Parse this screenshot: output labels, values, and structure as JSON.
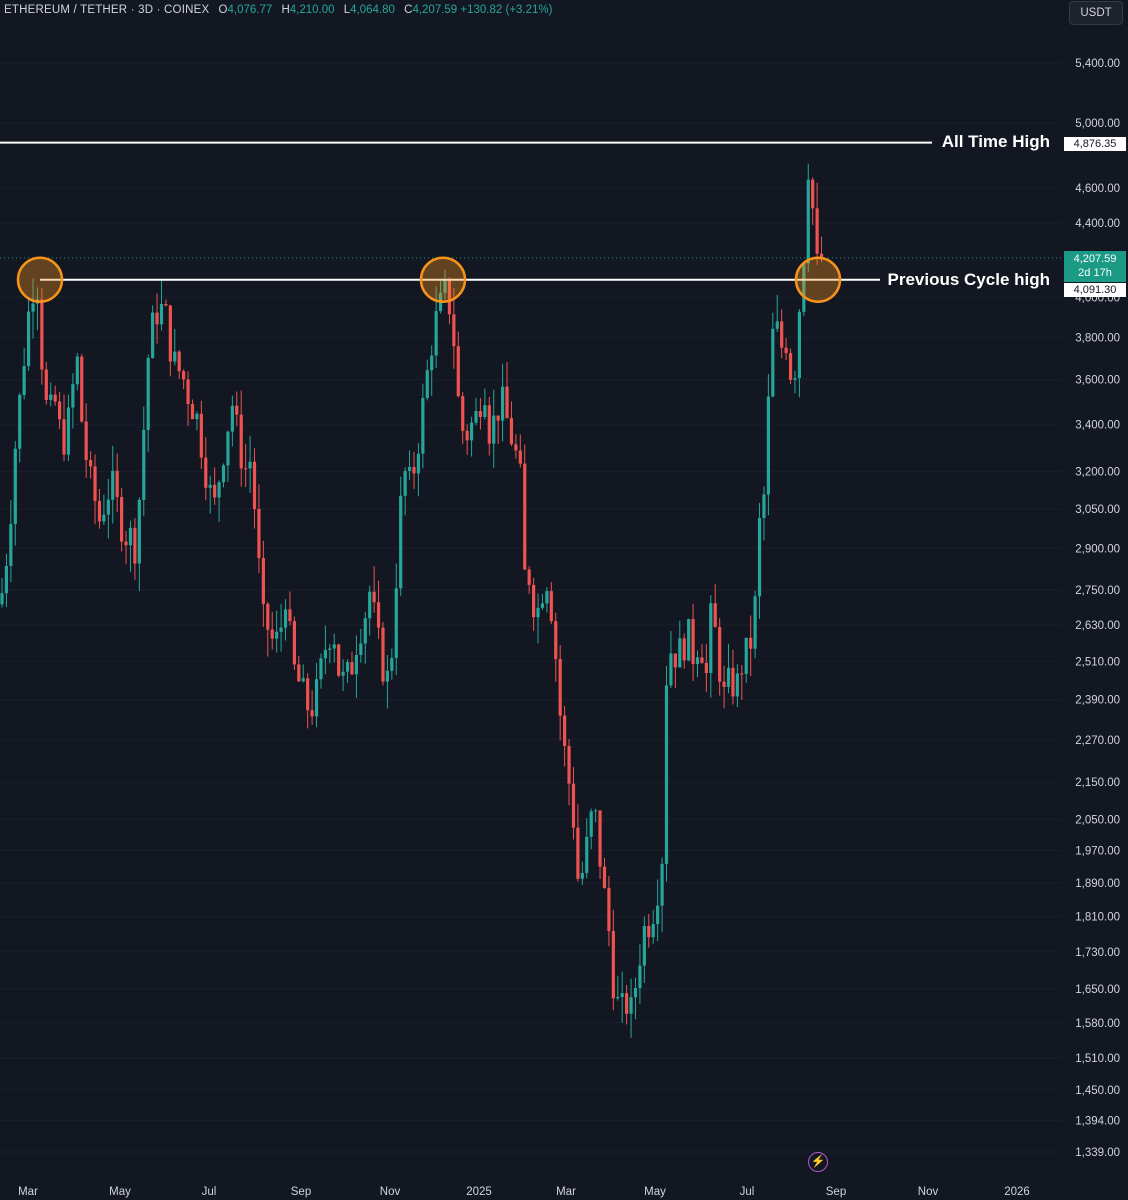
{
  "header": {
    "symbol": "ETHEREUM / TETHER · 3D · COINEX",
    "open_label": "O",
    "open": "4,076.77",
    "high_label": "H",
    "high": "4,210.00",
    "low_label": "L",
    "low": "4,064.80",
    "close_label": "C",
    "close": "4,207.59",
    "change": "+130.82 (+3.21%)"
  },
  "currency": "USDT",
  "annotations": {
    "ath_label": "All Time High",
    "ath_value": "4,876.35",
    "prev_cycle_label": "Previous Cycle high",
    "prev_cycle_value": "4,091.30",
    "last_price": "4,207.59",
    "countdown": "2d 17h"
  },
  "colors": {
    "up": "#26a69a",
    "down": "#ef5350",
    "background": "#131722",
    "circle": "#f7931a"
  },
  "icons": {
    "flash": "flash-icon"
  },
  "chart_data": {
    "type": "candlestick",
    "scale": "log",
    "ylim": [
      1339,
      5400
    ],
    "y_ticks": [
      "5,400.00",
      "5,000.00",
      "4,600.00",
      "4,400.00",
      "4,000.00",
      "3,800.00",
      "3,600.00",
      "3,400.00",
      "3,200.00",
      "3,050.00",
      "2,900.00",
      "2,750.00",
      "2,630.00",
      "2,510.00",
      "2,390.00",
      "2,270.00",
      "2,150.00",
      "2,050.00",
      "1,970.00",
      "1,890.00",
      "1,810.00",
      "1,730.00",
      "1,650.00",
      "1,580.00",
      "1,510.00",
      "1,450.00",
      "1,394.00",
      "1,339.00"
    ],
    "x_ticks": [
      "Mar",
      "May",
      "Jul",
      "Sep",
      "Nov",
      "2025",
      "Mar",
      "May",
      "Jul",
      "Sep",
      "Nov",
      "2026"
    ],
    "levels": [
      {
        "name": "All Time High",
        "value": 4876.35
      },
      {
        "name": "Previous Cycle high",
        "value": 4091.3
      }
    ],
    "price_path": [
      [
        0,
        2700
      ],
      [
        4,
        2780
      ],
      [
        10,
        3000
      ],
      [
        16,
        3350
      ],
      [
        22,
        3600
      ],
      [
        28,
        3900
      ],
      [
        33,
        4050
      ],
      [
        38,
        4060
      ],
      [
        44,
        3500
      ],
      [
        50,
        3450
      ],
      [
        56,
        3500
      ],
      [
        62,
        3300
      ],
      [
        68,
        3400
      ],
      [
        74,
        3600
      ],
      [
        78,
        3700
      ],
      [
        82,
        3400
      ],
      [
        88,
        3200
      ],
      [
        94,
        3100
      ],
      [
        100,
        3000
      ],
      [
        106,
        3100
      ],
      [
        112,
        3150
      ],
      [
        118,
        3050
      ],
      [
        124,
        2950
      ],
      [
        130,
        2950
      ],
      [
        136,
        2900
      ],
      [
        142,
        3250
      ],
      [
        148,
        3700
      ],
      [
        154,
        3900
      ],
      [
        160,
        3950
      ],
      [
        166,
        3900
      ],
      [
        172,
        3700
      ],
      [
        178,
        3650
      ],
      [
        184,
        3600
      ],
      [
        190,
        3500
      ],
      [
        196,
        3450
      ],
      [
        202,
        3300
      ],
      [
        208,
        3150
      ],
      [
        214,
        3050
      ],
      [
        220,
        3200
      ],
      [
        226,
        3350
      ],
      [
        232,
        3500
      ],
      [
        238,
        3350
      ],
      [
        244,
        3200
      ],
      [
        250,
        3250
      ],
      [
        256,
        3000
      ],
      [
        262,
        2650
      ],
      [
        268,
        2620
      ],
      [
        274,
        2560
      ],
      [
        280,
        2600
      ],
      [
        286,
        2750
      ],
      [
        292,
        2500
      ],
      [
        298,
        2450
      ],
      [
        304,
        2400
      ],
      [
        310,
        2350
      ],
      [
        316,
        2400
      ],
      [
        322,
        2500
      ],
      [
        328,
        2600
      ],
      [
        334,
        2600
      ],
      [
        340,
        2450
      ],
      [
        346,
        2450
      ],
      [
        352,
        2500
      ],
      [
        358,
        2600
      ],
      [
        364,
        2650
      ],
      [
        370,
        2750
      ],
      [
        376,
        2620
      ],
      [
        382,
        2500
      ],
      [
        388,
        2450
      ],
      [
        394,
        2600
      ],
      [
        398,
        2950
      ],
      [
        404,
        3200
      ],
      [
        410,
        3150
      ],
      [
        416,
        3250
      ],
      [
        422,
        3450
      ],
      [
        428,
        3650
      ],
      [
        434,
        3850
      ],
      [
        440,
        3950
      ],
      [
        446,
        4040
      ],
      [
        452,
        3900
      ],
      [
        456,
        3650
      ],
      [
        460,
        3400
      ],
      [
        466,
        3350
      ],
      [
        472,
        3400
      ],
      [
        478,
        3450
      ],
      [
        484,
        3600
      ],
      [
        490,
        3350
      ],
      [
        496,
        3450
      ],
      [
        502,
        3500
      ],
      [
        508,
        3400
      ],
      [
        514,
        3300
      ],
      [
        520,
        3200
      ],
      [
        524,
        2800
      ],
      [
        530,
        2800
      ],
      [
        536,
        2650
      ],
      [
        542,
        2750
      ],
      [
        548,
        2800
      ],
      [
        554,
        2600
      ],
      [
        560,
        2350
      ],
      [
        566,
        2200
      ],
      [
        572,
        2100
      ],
      [
        578,
        1900
      ],
      [
        584,
        1920
      ],
      [
        590,
        2050
      ],
      [
        596,
        2050
      ],
      [
        602,
        1900
      ],
      [
        608,
        1800
      ],
      [
        614,
        1650
      ],
      [
        620,
        1600
      ],
      [
        626,
        1620
      ],
      [
        632,
        1600
      ],
      [
        638,
        1700
      ],
      [
        644,
        1780
      ],
      [
        650,
        1800
      ],
      [
        656,
        1850
      ],
      [
        662,
        1950
      ],
      [
        666,
        2450
      ],
      [
        670,
        2550
      ],
      [
        676,
        2530
      ],
      [
        682,
        2550
      ],
      [
        688,
        2600
      ],
      [
        694,
        2520
      ],
      [
        700,
        2600
      ],
      [
        706,
        2450
      ],
      [
        712,
        2700
      ],
      [
        718,
        2520
      ],
      [
        724,
        2400
      ],
      [
        730,
        2450
      ],
      [
        736,
        2420
      ],
      [
        742,
        2500
      ],
      [
        748,
        2550
      ],
      [
        754,
        2600
      ],
      [
        758,
        2950
      ],
      [
        764,
        3100
      ],
      [
        768,
        3450
      ],
      [
        772,
        3800
      ],
      [
        776,
        3850
      ],
      [
        782,
        3750
      ],
      [
        788,
        3800
      ],
      [
        792,
        3550
      ],
      [
        796,
        3700
      ],
      [
        800,
        4000
      ],
      [
        804,
        4250
      ],
      [
        808,
        4750
      ],
      [
        812,
        4550
      ],
      [
        816,
        4150
      ],
      [
        820,
        4207.59
      ]
    ]
  }
}
